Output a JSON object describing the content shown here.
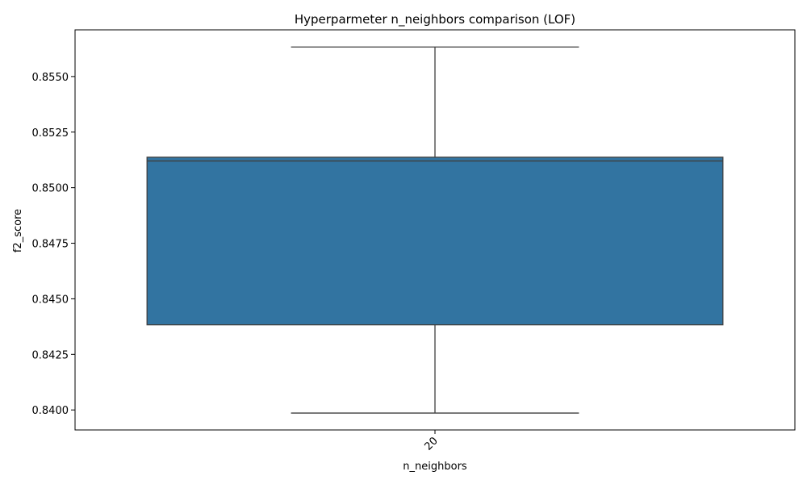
{
  "chart_data": {
    "type": "box",
    "title": "Hyperparmeter n_neighbors comparison (LOF)",
    "xlabel": "n_neighbors",
    "ylabel": "f2_score",
    "categories": [
      "20"
    ],
    "boxes": [
      {
        "category": "20",
        "whisker_low": 0.83986,
        "q1": 0.84383,
        "median": 0.8512,
        "q3": 0.85137,
        "whisker_high": 0.85633
      }
    ],
    "ylim": [
      0.8391,
      0.8571
    ],
    "yticks": [
      "0.8400",
      "0.8425",
      "0.8450",
      "0.8475",
      "0.8500",
      "0.8525",
      "0.8550"
    ],
    "grid": false,
    "legend": "none",
    "colors": {
      "box_fill": "#3274a1",
      "line": "#3f3f3f",
      "axis": "#000000"
    }
  }
}
